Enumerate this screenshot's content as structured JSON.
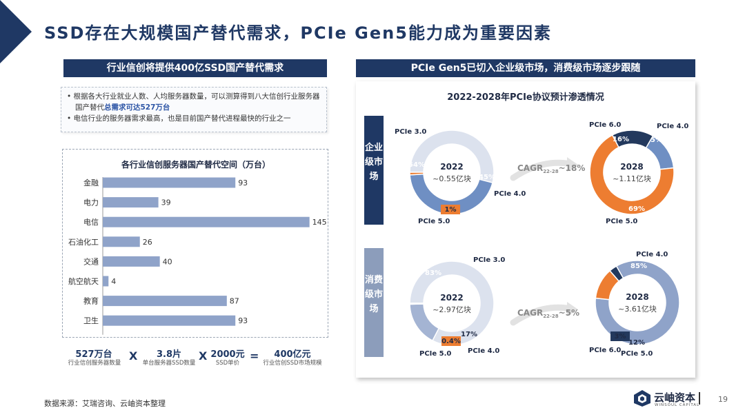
{
  "header": {
    "title": "SSD存在大规模国产替代需求，PCIe Gen5能力成为重要因素",
    "left_bar": "行业信创将提供400亿SSD国产替代需求",
    "right_bar": "PCIe Gen5已切入企业级市场，消费级市场逐步跟随"
  },
  "bullets": {
    "b1_prefix": "根据各大行业就业人数、人均服务器数量，可以测算得到八大信创行业服务器国产替代",
    "b1_highlight": "总需求可达527万台",
    "b2": "电信行业的服务器需求最高，也是目前国产替代进程最快的行业之一"
  },
  "chart_data": [
    {
      "type": "bar",
      "title": "各行业信创服务器国产替代空间（万台）",
      "categories": [
        "金融",
        "电力",
        "电信",
        "石油化工",
        "交通",
        "航空航天",
        "教育",
        "卫生"
      ],
      "values": [
        93,
        39,
        145,
        26,
        40,
        4,
        87,
        93
      ],
      "xlim": [
        0,
        150
      ],
      "bar_color": "#8fa3c9"
    },
    {
      "type": "pie",
      "title": "2022-2028年PCIe协议预计渗透情况",
      "donuts": [
        {
          "center_year": "2022",
          "center_value": "~0.55亿块",
          "slices": [
            {
              "label": "PCIe 3.0",
              "value": 54,
              "pct_label": "54%",
              "color": "#dce2ee"
            },
            {
              "label": "PCIe 4.0",
              "value": 45,
              "pct_label": "45%",
              "color": "#6f8fc3"
            },
            {
              "label": "PCIe 5.0",
              "value": 1,
              "pct_label": "1%",
              "color": "#ed7d31"
            }
          ]
        },
        {
          "center_year": "2028",
          "center_value": "~1.11亿块",
          "slices": [
            {
              "label": "PCIe 4.0",
              "value": 15,
              "pct_label": "15%",
              "color": "#6f8fc3"
            },
            {
              "label": "PCIe 5.0",
              "value": 69,
              "pct_label": "69%",
              "color": "#ed7d31"
            },
            {
              "label": "PCIe 6.0",
              "value": 16,
              "pct_label": "16%",
              "color": "#23395d"
            }
          ]
        },
        {
          "center_year": "2022",
          "center_value": "~2.97亿块",
          "slices": [
            {
              "label": "PCIe 3.0",
              "value": 82.6,
              "pct_label": "83%",
              "color": "#dce2ee"
            },
            {
              "label": "PCIe 4.0",
              "value": 17,
              "pct_label": "17%",
              "color": "#a4b4d3"
            },
            {
              "label": "PCIe 5.0",
              "value": 0.4,
              "pct_label": "0.4%",
              "color": "#ed7d31"
            }
          ]
        },
        {
          "center_year": "2028",
          "center_value": "~3.61亿块",
          "slices": [
            {
              "label": "PCIe 4.0",
              "value": 85,
              "pct_label": "85%",
              "color": "#8fa3c9"
            },
            {
              "label": "PCIe 5.0",
              "value": 12,
              "pct_label": "12%",
              "color": "#ed7d31"
            },
            {
              "label": "PCIe 6.0",
              "value": 3,
              "pct_label": "3%",
              "color": "#23395d"
            }
          ]
        }
      ]
    }
  ],
  "formula": {
    "n1": "527万台",
    "l1": "行业信创服务器数量",
    "op1": "X",
    "n2": "3.8片",
    "l2": "单台服务器SSD数量",
    "op2": "X",
    "n3": "2000元",
    "l3": "SSD单价",
    "op3": "=",
    "n4": "400亿元",
    "l4": "行业信创SSD市场规模"
  },
  "market_labels": {
    "enterprise": "企业级市场",
    "consumer": "消费级市场"
  },
  "cagr": {
    "enterprise": {
      "prefix": "CAGR",
      "sub": "22-28",
      "suffix": "~18%"
    },
    "consumer": {
      "prefix": "CAGR",
      "sub": "22-28",
      "suffix": "~5%"
    }
  },
  "footer": {
    "source": "数据来源：艾瑞咨询、云岫资本整理",
    "page": "19",
    "logo_text": "云岫资本",
    "logo_sub": "WINSOUL CAPITAL"
  },
  "colors": {
    "navy": "#1f3864",
    "slate": "#8c9dbb",
    "orange": "#ed7d31"
  }
}
